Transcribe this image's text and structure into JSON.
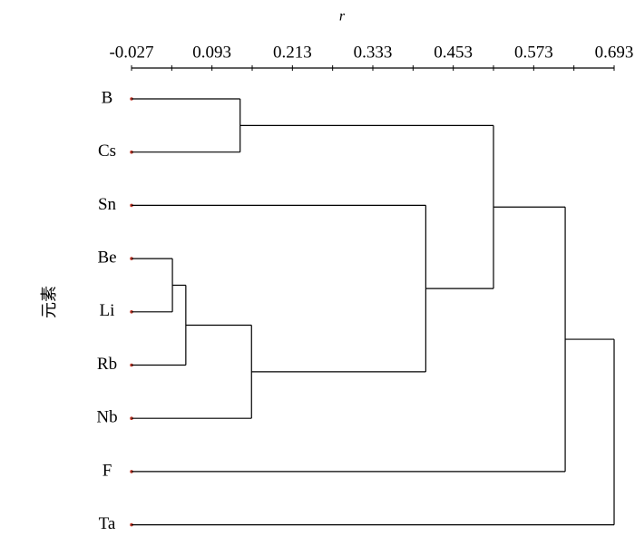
{
  "chart_data": {
    "type": "dendrogram",
    "x_label": "r",
    "y_label": "元素",
    "xlim": [
      -0.027,
      0.693
    ],
    "xticks": [
      -0.027,
      0.093,
      0.213,
      0.333,
      0.453,
      0.573,
      0.693
    ],
    "xminorticks": [
      0.033,
      0.153,
      0.273,
      0.393,
      0.513,
      0.633
    ],
    "leaf_color": "#c0392b",
    "tree": {
      "height": 0.693,
      "children": [
        {
          "height": 0.62,
          "children": [
            {
              "height": 0.513,
              "children": [
                {
                  "height": 0.135,
                  "children": [
                    {
                      "label": "B"
                    },
                    {
                      "label": "Cs"
                    }
                  ]
                },
                {
                  "height": 0.412,
                  "children": [
                    {
                      "label": "Sn"
                    },
                    {
                      "height": 0.152,
                      "children": [
                        {
                          "height": 0.054,
                          "children": [
                            {
                              "height": 0.034,
                              "children": [
                                {
                                  "label": "Be"
                                },
                                {
                                  "label": "Li"
                                }
                              ]
                            },
                            {
                              "label": "Rb"
                            }
                          ]
                        },
                        {
                          "label": "Nb"
                        }
                      ]
                    }
                  ]
                }
              ]
            },
            {
              "label": "F"
            }
          ]
        },
        {
          "label": "Ta"
        }
      ]
    }
  }
}
